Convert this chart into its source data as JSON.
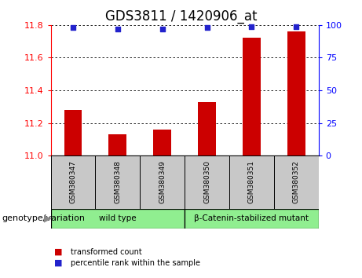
{
  "title": "GDS3811 / 1420906_at",
  "samples": [
    "GSM380347",
    "GSM380348",
    "GSM380349",
    "GSM380350",
    "GSM380351",
    "GSM380352"
  ],
  "bar_values": [
    11.28,
    11.13,
    11.16,
    11.33,
    11.72,
    11.76
  ],
  "percentile_values": [
    98,
    97,
    97,
    98,
    99,
    99
  ],
  "ylim_left": [
    11.0,
    11.8
  ],
  "ylim_right": [
    0,
    100
  ],
  "yticks_left": [
    11.0,
    11.2,
    11.4,
    11.6,
    11.8
  ],
  "yticks_right": [
    0,
    25,
    50,
    75,
    100
  ],
  "bar_color": "#cc0000",
  "dot_color": "#2222cc",
  "groups": [
    {
      "label": "wild type",
      "xmin": -0.5,
      "xmax": 2.5
    },
    {
      "label": "β-Catenin-stabilized mutant",
      "xmin": 2.5,
      "xmax": 5.5
    }
  ],
  "group_box_color": "#c8c8c8",
  "group_fill_color": "#90ee90",
  "genotype_label": "genotype/variation",
  "legend_items": [
    {
      "color": "#cc0000",
      "label": "transformed count"
    },
    {
      "color": "#2222cc",
      "label": "percentile rank within the sample"
    }
  ],
  "title_fontsize": 12,
  "tick_fontsize": 8,
  "sample_fontsize": 6.5,
  "group_fontsize": 7.5,
  "legend_fontsize": 8,
  "genotype_fontsize": 8
}
